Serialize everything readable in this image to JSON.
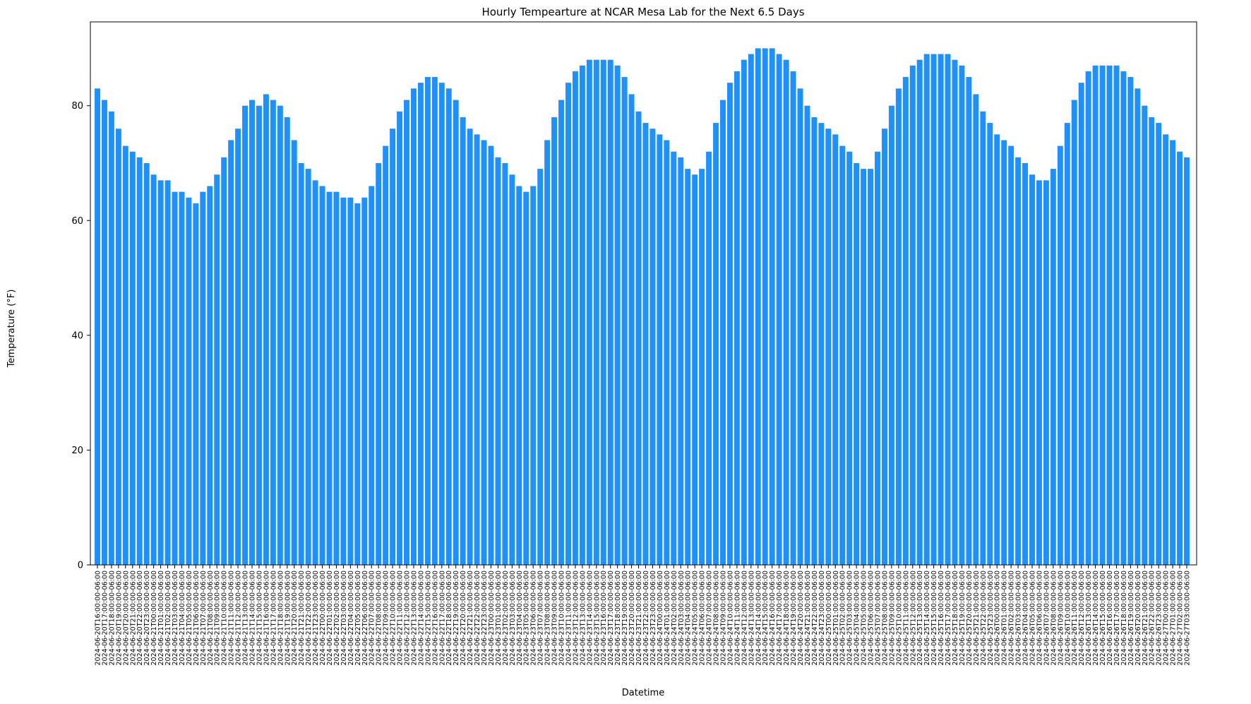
{
  "chart_data": {
    "type": "bar",
    "title": "Hourly Tempearture at NCAR Mesa Lab for the Next 6.5 Days",
    "x_label": "Datetime",
    "y_label": "Temperature (°F)",
    "color": "#1e90ff",
    "ylim": [
      0,
      94.6
    ],
    "yticks": [
      0,
      20,
      40,
      60,
      80
    ],
    "grid": false,
    "categories": [
      "2024-06-20T16:00:00-06:00",
      "2024-06-20T17:00:00-06:00",
      "2024-06-20T18:00:00-06:00",
      "2024-06-20T19:00:00-06:00",
      "2024-06-20T20:00:00-06:00",
      "2024-06-20T21:00:00-06:00",
      "2024-06-20T22:00:00-06:00",
      "2024-06-20T23:00:00-06:00",
      "2024-06-21T00:00:00-06:00",
      "2024-06-21T01:00:00-06:00",
      "2024-06-21T02:00:00-06:00",
      "2024-06-21T03:00:00-06:00",
      "2024-06-21T04:00:00-06:00",
      "2024-06-21T05:00:00-06:00",
      "2024-06-21T06:00:00-06:00",
      "2024-06-21T07:00:00-06:00",
      "2024-06-21T08:00:00-06:00",
      "2024-06-21T09:00:00-06:00",
      "2024-06-21T10:00:00-06:00",
      "2024-06-21T11:00:00-06:00",
      "2024-06-21T12:00:00-06:00",
      "2024-06-21T13:00:00-06:00",
      "2024-06-21T14:00:00-06:00",
      "2024-06-21T15:00:00-06:00",
      "2024-06-21T16:00:00-06:00",
      "2024-06-21T17:00:00-06:00",
      "2024-06-21T18:00:00-06:00",
      "2024-06-21T19:00:00-06:00",
      "2024-06-21T20:00:00-06:00",
      "2024-06-21T21:00:00-06:00",
      "2024-06-21T22:00:00-06:00",
      "2024-06-21T23:00:00-06:00",
      "2024-06-22T00:00:00-06:00",
      "2024-06-22T01:00:00-06:00",
      "2024-06-22T02:00:00-06:00",
      "2024-06-22T03:00:00-06:00",
      "2024-06-22T04:00:00-06:00",
      "2024-06-22T05:00:00-06:00",
      "2024-06-22T06:00:00-06:00",
      "2024-06-22T07:00:00-06:00",
      "2024-06-22T08:00:00-06:00",
      "2024-06-22T09:00:00-06:00",
      "2024-06-22T10:00:00-06:00",
      "2024-06-22T11:00:00-06:00",
      "2024-06-22T12:00:00-06:00",
      "2024-06-22T13:00:00-06:00",
      "2024-06-22T14:00:00-06:00",
      "2024-06-22T15:00:00-06:00",
      "2024-06-22T16:00:00-06:00",
      "2024-06-22T17:00:00-06:00",
      "2024-06-22T18:00:00-06:00",
      "2024-06-22T19:00:00-06:00",
      "2024-06-22T20:00:00-06:00",
      "2024-06-22T21:00:00-06:00",
      "2024-06-22T22:00:00-06:00",
      "2024-06-22T23:00:00-06:00",
      "2024-06-23T00:00:00-06:00",
      "2024-06-23T01:00:00-06:00",
      "2024-06-23T02:00:00-06:00",
      "2024-06-23T03:00:00-06:00",
      "2024-06-23T04:00:00-06:00",
      "2024-06-23T05:00:00-06:00",
      "2024-06-23T06:00:00-06:00",
      "2024-06-23T07:00:00-06:00",
      "2024-06-23T08:00:00-06:00",
      "2024-06-23T09:00:00-06:00",
      "2024-06-23T10:00:00-06:00",
      "2024-06-23T11:00:00-06:00",
      "2024-06-23T12:00:00-06:00",
      "2024-06-23T13:00:00-06:00",
      "2024-06-23T14:00:00-06:00",
      "2024-06-23T15:00:00-06:00",
      "2024-06-23T16:00:00-06:00",
      "2024-06-23T17:00:00-06:00",
      "2024-06-23T18:00:00-06:00",
      "2024-06-23T19:00:00-06:00",
      "2024-06-23T20:00:00-06:00",
      "2024-06-23T21:00:00-06:00",
      "2024-06-23T22:00:00-06:00",
      "2024-06-23T23:00:00-06:00",
      "2024-06-24T00:00:00-06:00",
      "2024-06-24T01:00:00-06:00",
      "2024-06-24T02:00:00-06:00",
      "2024-06-24T03:00:00-06:00",
      "2024-06-24T04:00:00-06:00",
      "2024-06-24T05:00:00-06:00",
      "2024-06-24T06:00:00-06:00",
      "2024-06-24T07:00:00-06:00",
      "2024-06-24T08:00:00-06:00",
      "2024-06-24T09:00:00-06:00",
      "2024-06-24T10:00:00-06:00",
      "2024-06-24T11:00:00-06:00",
      "2024-06-24T12:00:00-06:00",
      "2024-06-24T13:00:00-06:00",
      "2024-06-24T14:00:00-06:00",
      "2024-06-24T15:00:00-06:00",
      "2024-06-24T16:00:00-06:00",
      "2024-06-24T17:00:00-06:00",
      "2024-06-24T18:00:00-06:00",
      "2024-06-24T19:00:00-06:00",
      "2024-06-24T20:00:00-06:00",
      "2024-06-24T21:00:00-06:00",
      "2024-06-24T22:00:00-06:00",
      "2024-06-24T23:00:00-06:00",
      "2024-06-25T00:00:00-06:00",
      "2024-06-25T01:00:00-06:00",
      "2024-06-25T02:00:00-06:00",
      "2024-06-25T03:00:00-06:00",
      "2024-06-25T04:00:00-06:00",
      "2024-06-25T05:00:00-06:00",
      "2024-06-25T06:00:00-06:00",
      "2024-06-25T07:00:00-06:00",
      "2024-06-25T08:00:00-06:00",
      "2024-06-25T09:00:00-06:00",
      "2024-06-25T10:00:00-06:00",
      "2024-06-25T11:00:00-06:00",
      "2024-06-25T12:00:00-06:00",
      "2024-06-25T13:00:00-06:00",
      "2024-06-25T14:00:00-06:00",
      "2024-06-25T15:00:00-06:00",
      "2024-06-25T16:00:00-06:00",
      "2024-06-25T17:00:00-06:00",
      "2024-06-25T18:00:00-06:00",
      "2024-06-25T19:00:00-06:00",
      "2024-06-25T20:00:00-06:00",
      "2024-06-25T21:00:00-06:00",
      "2024-06-25T22:00:00-06:00",
      "2024-06-25T23:00:00-06:00",
      "2024-06-26T00:00:00-06:00",
      "2024-06-26T01:00:00-06:00",
      "2024-06-26T02:00:00-06:00",
      "2024-06-26T03:00:00-06:00",
      "2024-06-26T04:00:00-06:00",
      "2024-06-26T05:00:00-06:00",
      "2024-06-26T06:00:00-06:00",
      "2024-06-26T07:00:00-06:00",
      "2024-06-26T08:00:00-06:00",
      "2024-06-26T09:00:00-06:00",
      "2024-06-26T10:00:00-06:00",
      "2024-06-26T11:00:00-06:00",
      "2024-06-26T12:00:00-06:00",
      "2024-06-26T13:00:00-06:00",
      "2024-06-26T14:00:00-06:00",
      "2024-06-26T15:00:00-06:00",
      "2024-06-26T16:00:00-06:00",
      "2024-06-26T17:00:00-06:00",
      "2024-06-26T18:00:00-06:00",
      "2024-06-26T19:00:00-06:00",
      "2024-06-26T20:00:00-06:00",
      "2024-06-26T21:00:00-06:00",
      "2024-06-26T22:00:00-06:00",
      "2024-06-26T23:00:00-06:00",
      "2024-06-27T00:00:00-06:00",
      "2024-06-27T01:00:00-06:00",
      "2024-06-27T02:00:00-06:00",
      "2024-06-27T03:00:00-06:00"
    ],
    "values": [
      83,
      81,
      79,
      76,
      73,
      72,
      71,
      70,
      68,
      67,
      67,
      65,
      65,
      64,
      63,
      65,
      66,
      68,
      71,
      74,
      76,
      80,
      81,
      80,
      82,
      81,
      80,
      78,
      74,
      70,
      69,
      67,
      66,
      65,
      65,
      64,
      64,
      63,
      64,
      66,
      70,
      73,
      76,
      79,
      81,
      83,
      84,
      85,
      85,
      84,
      83,
      81,
      78,
      76,
      75,
      74,
      73,
      71,
      70,
      68,
      66,
      65,
      66,
      69,
      74,
      78,
      81,
      84,
      86,
      87,
      88,
      88,
      88,
      88,
      87,
      85,
      82,
      79,
      77,
      76,
      75,
      74,
      72,
      71,
      69,
      68,
      69,
      72,
      77,
      81,
      84,
      86,
      88,
      89,
      90,
      90,
      90,
      89,
      88,
      86,
      83,
      80,
      78,
      77,
      76,
      75,
      73,
      72,
      70,
      69,
      69,
      72,
      76,
      80,
      83,
      85,
      87,
      88,
      89,
      89,
      89,
      89,
      88,
      87,
      85,
      82,
      79,
      77,
      75,
      74,
      73,
      71,
      70,
      68,
      67,
      67,
      69,
      73,
      77,
      81,
      84,
      86,
      87,
      87,
      87,
      87,
      86,
      85,
      83,
      80,
      78,
      77,
      75,
      74,
      72,
      71
    ]
  }
}
